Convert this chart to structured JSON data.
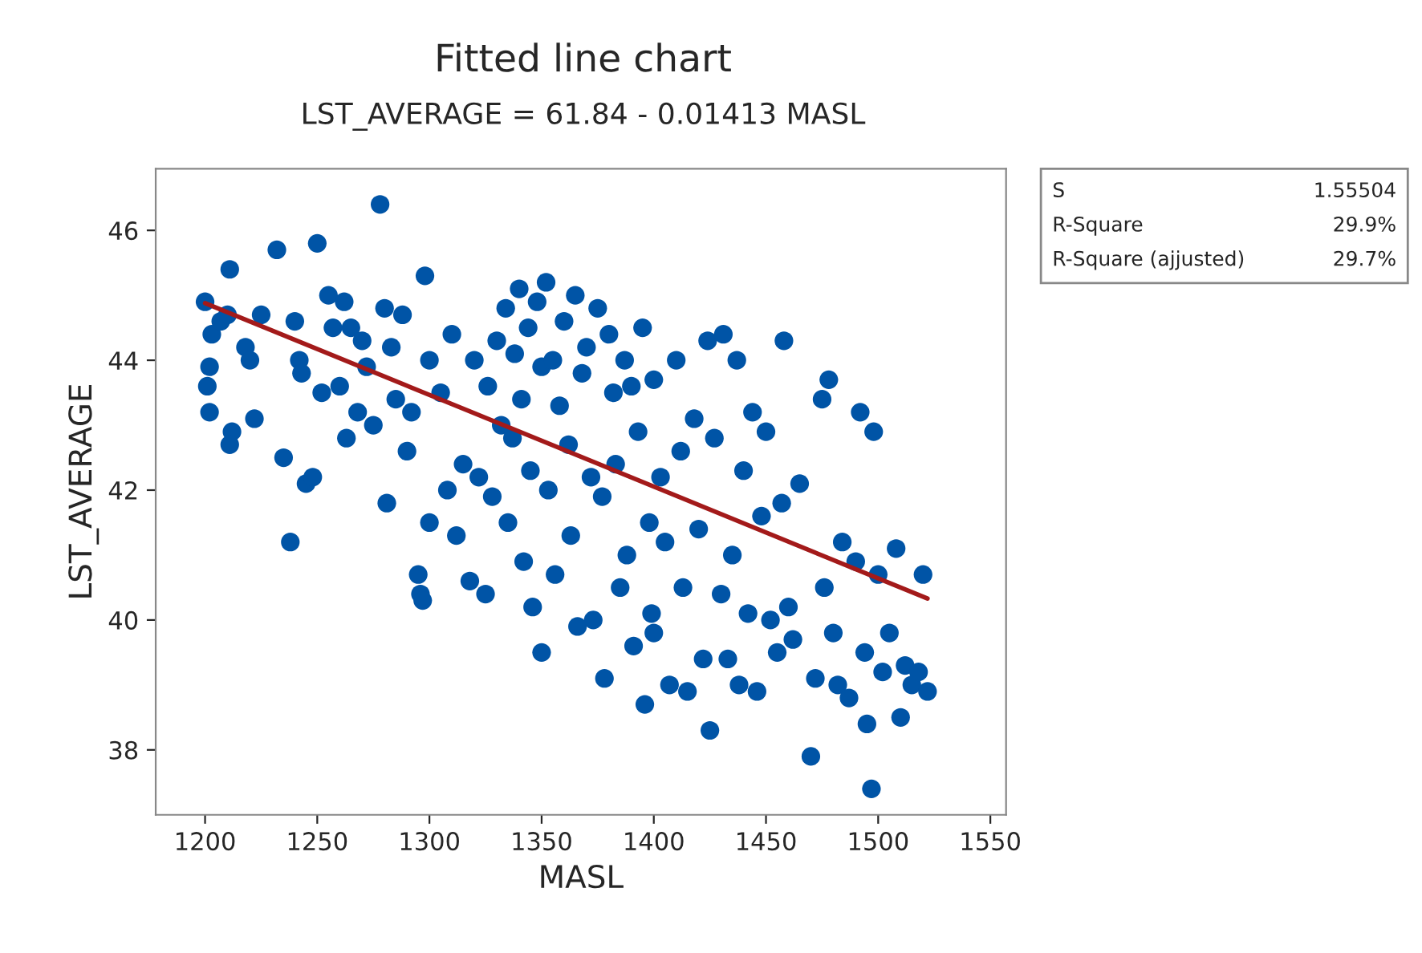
{
  "chart_data": {
    "type": "scatter",
    "title": "Fitted line chart",
    "subtitle": "LST_AVERAGE = 61.84 - 0.01413 MASL",
    "xlabel": "MASL",
    "ylabel": "LST_AVERAGE",
    "annotations": [
      "S",
      "1.55504",
      "R-Square",
      "29.9%",
      "R-Square (ajjusted)",
      "29.7%"
    ],
    "xlim": [
      1178,
      1557
    ],
    "ylim": [
      37,
      46.95
    ],
    "xticks": [
      1200,
      1250,
      1300,
      1350,
      1400,
      1450,
      1500,
      1550
    ],
    "yticks": [
      38,
      40,
      42,
      44,
      46
    ],
    "grid": false,
    "legend": false,
    "series": [
      {
        "marker": "circle",
        "color": "#0054a6",
        "x": [
          1200,
          1203,
          1202,
          1201,
          1202,
          1207,
          1210,
          1211,
          1212,
          1211,
          1218,
          1220,
          1222,
          1225,
          1232,
          1235,
          1238,
          1240,
          1242,
          1243,
          1245,
          1248,
          1250,
          1252,
          1255,
          1257,
          1260,
          1262,
          1263,
          1265,
          1268,
          1270,
          1272,
          1275,
          1278,
          1280,
          1281,
          1283,
          1285,
          1288,
          1290,
          1292,
          1295,
          1296,
          1297,
          1298,
          1300,
          1300,
          1305,
          1308,
          1310,
          1312,
          1315,
          1318,
          1320,
          1322,
          1325,
          1326,
          1328,
          1330,
          1332,
          1334,
          1335,
          1337,
          1338,
          1340,
          1341,
          1342,
          1344,
          1345,
          1346,
          1348,
          1350,
          1350,
          1352,
          1353,
          1355,
          1356,
          1358,
          1360,
          1362,
          1363,
          1365,
          1366,
          1368,
          1370,
          1372,
          1373,
          1375,
          1377,
          1378,
          1380,
          1382,
          1383,
          1385,
          1387,
          1388,
          1390,
          1391,
          1393,
          1395,
          1396,
          1398,
          1399,
          1400,
          1400,
          1403,
          1405,
          1407,
          1410,
          1412,
          1413,
          1415,
          1418,
          1420,
          1422,
          1424,
          1425,
          1427,
          1430,
          1431,
          1433,
          1435,
          1437,
          1438,
          1440,
          1442,
          1444,
          1446,
          1448,
          1450,
          1452,
          1455,
          1457,
          1458,
          1460,
          1462,
          1465,
          1470,
          1472,
          1475,
          1476,
          1478,
          1480,
          1482,
          1484,
          1487,
          1490,
          1492,
          1494,
          1495,
          1497,
          1498,
          1500,
          1502,
          1505,
          1508,
          1510,
          1512,
          1515,
          1518,
          1520,
          1522
        ],
        "values": [
          44.9,
          44.4,
          43.9,
          43.6,
          43.2,
          44.6,
          44.7,
          45.4,
          42.9,
          42.7,
          44.2,
          44.0,
          43.1,
          44.7,
          45.7,
          42.5,
          41.2,
          44.6,
          44.0,
          43.8,
          42.1,
          42.2,
          45.8,
          43.5,
          45.0,
          44.5,
          43.6,
          44.9,
          42.8,
          44.5,
          43.2,
          44.3,
          43.9,
          43.0,
          46.4,
          44.8,
          41.8,
          44.2,
          43.4,
          44.7,
          42.6,
          43.2,
          40.7,
          40.4,
          40.3,
          45.3,
          44.0,
          41.5,
          43.5,
          42.0,
          44.4,
          41.3,
          42.4,
          40.6,
          44.0,
          42.2,
          40.4,
          43.6,
          41.9,
          44.3,
          43.0,
          44.8,
          41.5,
          42.8,
          44.1,
          45.1,
          43.4,
          40.9,
          44.5,
          42.3,
          40.2,
          44.9,
          43.9,
          39.5,
          45.2,
          42.0,
          44.0,
          40.7,
          43.3,
          44.6,
          42.7,
          41.3,
          45.0,
          39.9,
          43.8,
          44.2,
          42.2,
          40.0,
          44.8,
          41.9,
          39.1,
          44.4,
          43.5,
          42.4,
          40.5,
          44.0,
          41.0,
          43.6,
          39.6,
          42.9,
          44.5,
          38.7,
          41.5,
          40.1,
          43.7,
          39.8,
          42.2,
          41.2,
          39.0,
          44.0,
          42.6,
          40.5,
          38.9,
          43.1,
          41.4,
          39.4,
          44.3,
          38.3,
          42.8,
          40.4,
          44.4,
          39.4,
          41.0,
          44.0,
          39.0,
          42.3,
          40.1,
          43.2,
          38.9,
          41.6,
          42.9,
          40.0,
          39.5,
          41.8,
          44.3,
          40.2,
          39.7,
          42.1,
          37.9,
          39.1,
          43.4,
          40.5,
          43.7,
          39.8,
          39.0,
          41.2,
          38.8,
          40.9,
          43.2,
          39.5,
          38.4,
          37.4,
          42.9,
          40.7,
          39.2,
          39.8,
          41.1,
          38.5,
          39.3,
          39.0,
          39.2,
          40.7,
          38.9
        ]
      },
      {
        "type": "line",
        "marker": "none",
        "color": "#a31a1a",
        "x": [
          1200,
          1522
        ],
        "values": [
          44.88,
          40.33
        ]
      }
    ]
  }
}
